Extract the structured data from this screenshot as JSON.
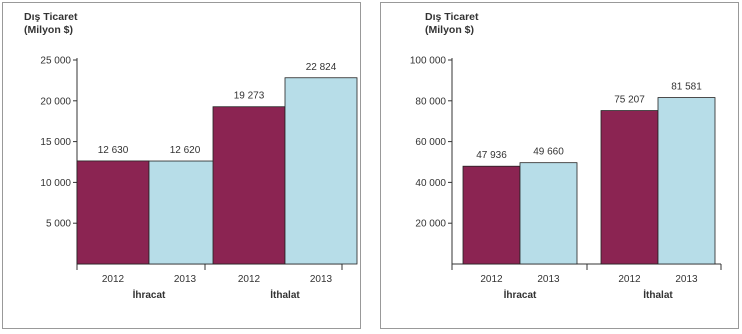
{
  "chart_data": [
    {
      "type": "bar",
      "title": "Dış Ticaret\n(Milyon $)",
      "groups": [
        {
          "label": "İhracat",
          "categories": [
            "2012",
            "2013"
          ],
          "values": [
            12630,
            12620
          ],
          "value_labels": [
            "12 630",
            "12 620"
          ]
        },
        {
          "label": "İthalat",
          "categories": [
            "2012",
            "2013"
          ],
          "values": [
            19273,
            22824
          ],
          "value_labels": [
            "19 273",
            "22 824"
          ]
        }
      ],
      "ylim": [
        0,
        25000
      ],
      "yticks": [
        5000,
        10000,
        15000,
        20000,
        25000
      ],
      "ytick_labels": [
        "5 000",
        "10 000",
        "15 000",
        "20 000",
        "25 000"
      ],
      "grid": false,
      "legend": "none"
    },
    {
      "type": "bar",
      "title": "Dış Ticaret\n(Milyon $)",
      "groups": [
        {
          "label": "İhracat",
          "categories": [
            "2012",
            "2013"
          ],
          "values": [
            47936,
            49660
          ],
          "value_labels": [
            "47 936",
            "49 660"
          ]
        },
        {
          "label": "İthalat",
          "categories": [
            "2012",
            "2013"
          ],
          "values": [
            75207,
            81581
          ],
          "value_labels": [
            "75 207",
            "81 581"
          ]
        }
      ],
      "ylim": [
        0,
        100000
      ],
      "yticks": [
        20000,
        40000,
        60000,
        80000,
        100000
      ],
      "ytick_labels": [
        "20 000",
        "40 000",
        "60 000",
        "80 000",
        "100 000"
      ],
      "grid": false,
      "legend": "none"
    }
  ],
  "colors": {
    "year_2012": "#8b2452",
    "year_2013": "#b7dde8",
    "axis": "#333333",
    "text": "#333333",
    "frame": "#999999"
  }
}
